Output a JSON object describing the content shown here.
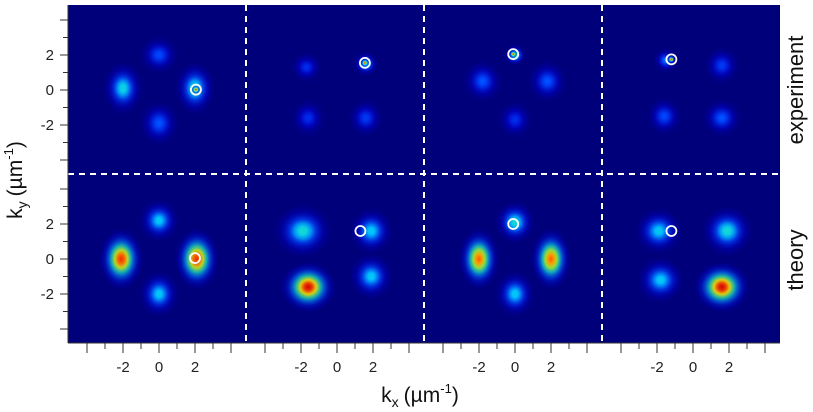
{
  "figure": {
    "x_axis_label": "k",
    "x_axis_subscript": "x",
    "x_axis_unit": "(µm",
    "x_axis_unit_exp": "-1",
    "x_axis_unit_close": ")",
    "y_axis_label": "k",
    "y_axis_subscript": "y",
    "y_axis_unit": "(µm",
    "y_axis_unit_exp": "-1",
    "y_axis_unit_close": ")",
    "row_labels": [
      "experiment",
      "theory"
    ],
    "x_ticks": [
      "-2",
      "0",
      "2"
    ],
    "y_ticks": [
      "2",
      "0",
      "-2"
    ],
    "background_color": "#00007a"
  },
  "panels": {
    "experiment": [
      {
        "lobes": [
          {
            "k": [
              -2.0,
              0.1
            ],
            "s": [
              0.55,
              0.75
            ],
            "a": 0.48
          },
          {
            "k": [
              2.0,
              0.1
            ],
            "s": [
              0.55,
              0.75
            ],
            "a": 0.5
          },
          {
            "k": [
              0,
              2.0
            ],
            "s": [
              0.55,
              0.55
            ],
            "a": 0.28
          },
          {
            "k": [
              0,
              -1.9
            ],
            "s": [
              0.55,
              0.65
            ],
            "a": 0.3
          },
          {
            "k": [
              2.05,
              0.02
            ],
            "s": [
              0.12,
              0.12
            ],
            "a": 0.95
          }
        ],
        "marker": [
          2.05,
          0.02
        ]
      },
      {
        "lobes": [
          {
            "k": [
              -1.7,
              1.3
            ],
            "s": [
              0.45,
              0.45
            ],
            "a": 0.22
          },
          {
            "k": [
              1.6,
              1.5
            ],
            "s": [
              0.35,
              0.35
            ],
            "a": 0.45
          },
          {
            "k": [
              -1.6,
              -1.6
            ],
            "s": [
              0.5,
              0.55
            ],
            "a": 0.22
          },
          {
            "k": [
              1.6,
              -1.6
            ],
            "s": [
              0.5,
              0.55
            ],
            "a": 0.25
          },
          {
            "k": [
              1.55,
              1.55
            ],
            "s": [
              0.12,
              0.12
            ],
            "a": 0.95
          }
        ],
        "marker": [
          1.55,
          1.55
        ]
      },
      {
        "lobes": [
          {
            "k": [
              -1.8,
              0.5
            ],
            "s": [
              0.55,
              0.6
            ],
            "a": 0.3
          },
          {
            "k": [
              1.8,
              0.5
            ],
            "s": [
              0.55,
              0.6
            ],
            "a": 0.3
          },
          {
            "k": [
              0,
              2.0
            ],
            "s": [
              0.3,
              0.3
            ],
            "a": 0.55
          },
          {
            "k": [
              0,
              -1.7
            ],
            "s": [
              0.5,
              0.55
            ],
            "a": 0.22
          },
          {
            "k": [
              -0.1,
              2.05
            ],
            "s": [
              0.11,
              0.11
            ],
            "a": 0.95
          }
        ],
        "marker": [
          -0.1,
          2.05
        ]
      },
      {
        "lobes": [
          {
            "k": [
              -1.5,
              1.7
            ],
            "s": [
              0.35,
              0.35
            ],
            "a": 0.35
          },
          {
            "k": [
              1.6,
              1.4
            ],
            "s": [
              0.5,
              0.55
            ],
            "a": 0.25
          },
          {
            "k": [
              -1.6,
              -1.5
            ],
            "s": [
              0.5,
              0.55
            ],
            "a": 0.28
          },
          {
            "k": [
              1.6,
              -1.6
            ],
            "s": [
              0.55,
              0.55
            ],
            "a": 0.3
          },
          {
            "k": [
              -1.2,
              1.75
            ],
            "s": [
              0.11,
              0.11
            ],
            "a": 0.95
          }
        ],
        "marker": [
          -1.2,
          1.75
        ]
      }
    ],
    "theory": [
      {
        "lobes": [
          {
            "k": [
              -2.1,
              0.0
            ],
            "s": [
              0.6,
              0.85
            ],
            "a": 0.95
          },
          {
            "k": [
              2.1,
              0.0
            ],
            "s": [
              0.6,
              0.85
            ],
            "a": 0.95
          },
          {
            "k": [
              0,
              2.2
            ],
            "s": [
              0.55,
              0.6
            ],
            "a": 0.45
          },
          {
            "k": [
              0,
              -2.0
            ],
            "s": [
              0.55,
              0.65
            ],
            "a": 0.45
          }
        ],
        "marker": [
          2.0,
          0.05
        ]
      },
      {
        "lobes": [
          {
            "k": [
              -1.9,
              1.6
            ],
            "s": [
              0.8,
              0.75
            ],
            "a": 0.5
          },
          {
            "k": [
              1.9,
              1.6
            ],
            "s": [
              0.6,
              0.65
            ],
            "a": 0.45
          },
          {
            "k": [
              -1.6,
              -1.6
            ],
            "s": [
              0.75,
              0.7
            ],
            "a": 1.0
          },
          {
            "k": [
              1.9,
              -1.0
            ],
            "s": [
              0.6,
              0.65
            ],
            "a": 0.45
          }
        ],
        "marker": [
          1.3,
          1.6
        ]
      },
      {
        "lobes": [
          {
            "k": [
              -2.0,
              0.0
            ],
            "s": [
              0.55,
              0.85
            ],
            "a": 0.9
          },
          {
            "k": [
              2.0,
              0.0
            ],
            "s": [
              0.55,
              0.85
            ],
            "a": 0.9
          },
          {
            "k": [
              0,
              2.1
            ],
            "s": [
              0.55,
              0.6
            ],
            "a": 0.5
          },
          {
            "k": [
              0,
              -2.0
            ],
            "s": [
              0.55,
              0.65
            ],
            "a": 0.45
          }
        ],
        "marker": [
          -0.1,
          2.0
        ]
      },
      {
        "lobes": [
          {
            "k": [
              -1.9,
              1.6
            ],
            "s": [
              0.65,
              0.65
            ],
            "a": 0.45
          },
          {
            "k": [
              1.9,
              1.6
            ],
            "s": [
              0.7,
              0.7
            ],
            "a": 0.5
          },
          {
            "k": [
              -1.8,
              -1.2
            ],
            "s": [
              0.65,
              0.65
            ],
            "a": 0.45
          },
          {
            "k": [
              1.6,
              -1.6
            ],
            "s": [
              0.75,
              0.7
            ],
            "a": 1.0
          }
        ],
        "marker": [
          -1.2,
          1.6
        ]
      }
    ]
  }
}
